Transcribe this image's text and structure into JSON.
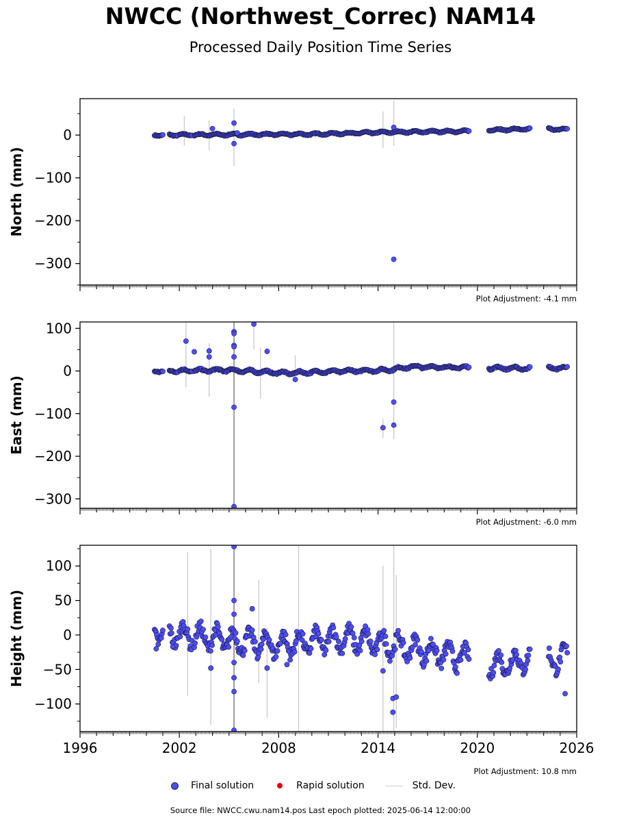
{
  "title": "NWCC (Northwest_Correc) NAM14",
  "subtitle": "Processed Daily Position Time Series",
  "chart_data": [
    {
      "type": "scatter",
      "ylabel": "North (mm)",
      "ylim": [
        -350,
        85
      ],
      "yticks": [
        0,
        -100,
        -200,
        -300
      ],
      "xlim": [
        1996,
        2026
      ],
      "adjustment": "Plot Adjustment: -4.1 mm",
      "show_x_labels": false,
      "trend": [
        [
          2000.5,
          0
        ],
        [
          2005,
          1
        ],
        [
          2010,
          2
        ],
        [
          2015,
          7
        ],
        [
          2019.5,
          9
        ]
      ],
      "trend2": [
        [
          2020.7,
          12
        ],
        [
          2023.2,
          14
        ],
        [
          2024.3,
          14
        ],
        [
          2025.45,
          13
        ]
      ],
      "amplitude": 2,
      "outliers": [
        [
          2004,
          15
        ],
        [
          2005.3,
          28
        ],
        [
          2005.3,
          -20
        ],
        [
          2005.5,
          5
        ],
        [
          2014.95,
          18
        ],
        [
          2014.95,
          -290
        ]
      ],
      "errorbars": [
        [
          2002.3,
          45,
          -25
        ],
        [
          2003.8,
          35,
          -35
        ],
        [
          2005.3,
          62,
          -72
        ],
        [
          2014.3,
          55,
          -30
        ],
        [
          2014.95,
          80,
          -25
        ]
      ]
    },
    {
      "type": "scatter",
      "ylabel": "East (mm)",
      "ylim": [
        -322,
        115
      ],
      "yticks": [
        100,
        0,
        -100,
        -200,
        -300
      ],
      "xlim": [
        1996,
        2026
      ],
      "adjustment": "Plot Adjustment: -6.0 mm",
      "show_x_labels": false,
      "trend": [
        [
          2000.5,
          0
        ],
        [
          2005,
          2
        ],
        [
          2008.5,
          -5
        ],
        [
          2012,
          0
        ],
        [
          2014.5,
          2
        ],
        [
          2016,
          10
        ],
        [
          2019.5,
          8
        ]
      ],
      "trend2": [
        [
          2020.7,
          7
        ],
        [
          2023.2,
          6
        ],
        [
          2024.3,
          7
        ],
        [
          2025.45,
          7
        ]
      ],
      "amplitude": 3,
      "outliers": [
        [
          2002.4,
          70
        ],
        [
          2003.8,
          47
        ],
        [
          2003.8,
          33
        ],
        [
          2002.9,
          45
        ],
        [
          2005.3,
          92
        ],
        [
          2005.3,
          88
        ],
        [
          2005.3,
          60
        ],
        [
          2005.3,
          57
        ],
        [
          2005.3,
          33
        ],
        [
          2005.3,
          -85
        ],
        [
          2005.3,
          -318
        ],
        [
          2006.5,
          110
        ],
        [
          2007.3,
          46
        ],
        [
          2009,
          -20
        ],
        [
          2014.3,
          -133
        ],
        [
          2014.95,
          -73
        ],
        [
          2014.95,
          -127
        ]
      ],
      "errorbars": [
        [
          2002.4,
          115,
          -38
        ],
        [
          2003.8,
          65,
          -60
        ],
        [
          2005.3,
          115,
          -322
        ],
        [
          2006.5,
          115,
          50
        ],
        [
          2006.9,
          55,
          -65
        ],
        [
          2009,
          37,
          -25
        ],
        [
          2014.3,
          -112,
          -157
        ],
        [
          2014.95,
          115,
          -160
        ]
      ]
    },
    {
      "type": "scatter",
      "ylabel": "Height (mm)",
      "ylim": [
        -140,
        130
      ],
      "yticks": [
        100,
        50,
        0,
        -50,
        -100
      ],
      "xlim": [
        1996,
        2026
      ],
      "xticks": [
        1996,
        2002,
        2008,
        2014,
        2020,
        2026
      ],
      "adjustment": "Plot Adjustment: 10.8 mm",
      "show_x_labels": true,
      "trend": [
        [
          2000.5,
          5
        ],
        [
          2004,
          -5
        ],
        [
          2008,
          -15
        ],
        [
          2012,
          -5
        ],
        [
          2015,
          -15
        ],
        [
          2019.5,
          -35
        ]
      ],
      "trend2": [
        [
          2020.7,
          -45
        ],
        [
          2023.2,
          -35
        ],
        [
          2024.3,
          -38
        ],
        [
          2025.45,
          -32
        ]
      ],
      "amplitude": 15,
      "outliers": [
        [
          2000.6,
          -20
        ],
        [
          2001.6,
          -17
        ],
        [
          2003.9,
          -48
        ],
        [
          2005.3,
          128
        ],
        [
          2005.3,
          50
        ],
        [
          2005.3,
          30
        ],
        [
          2005.3,
          -40
        ],
        [
          2005.3,
          -62
        ],
        [
          2005.3,
          -82
        ],
        [
          2005.3,
          -138
        ],
        [
          2006.4,
          38
        ],
        [
          2007.3,
          -48
        ],
        [
          2008.5,
          -43
        ],
        [
          2014.3,
          -52
        ],
        [
          2014.9,
          -92
        ],
        [
          2015.1,
          -90
        ],
        [
          2014.9,
          -112
        ],
        [
          2025.3,
          -85
        ]
      ],
      "errorbars": [
        [
          2002.5,
          120,
          -88
        ],
        [
          2003.9,
          125,
          -130
        ],
        [
          2005.3,
          130,
          -140
        ],
        [
          2006.8,
          80,
          -70
        ],
        [
          2007.3,
          10,
          -120
        ],
        [
          2009.2,
          130,
          -140
        ],
        [
          2014.3,
          100,
          -140
        ],
        [
          2014.95,
          130,
          -140
        ],
        [
          2015.1,
          87,
          -135
        ]
      ]
    }
  ],
  "legend": {
    "final_label": "Final solution",
    "rapid_label": "Rapid solution",
    "std_label": "Std. Dev.",
    "final_color": "#4d4dff",
    "rapid_color": "#dd0000",
    "std_color": "#cccccc"
  },
  "footer": "Source file: NWCC.cwu.nam14.pos  Last epoch plotted: 2025-06-14 12:00:00"
}
